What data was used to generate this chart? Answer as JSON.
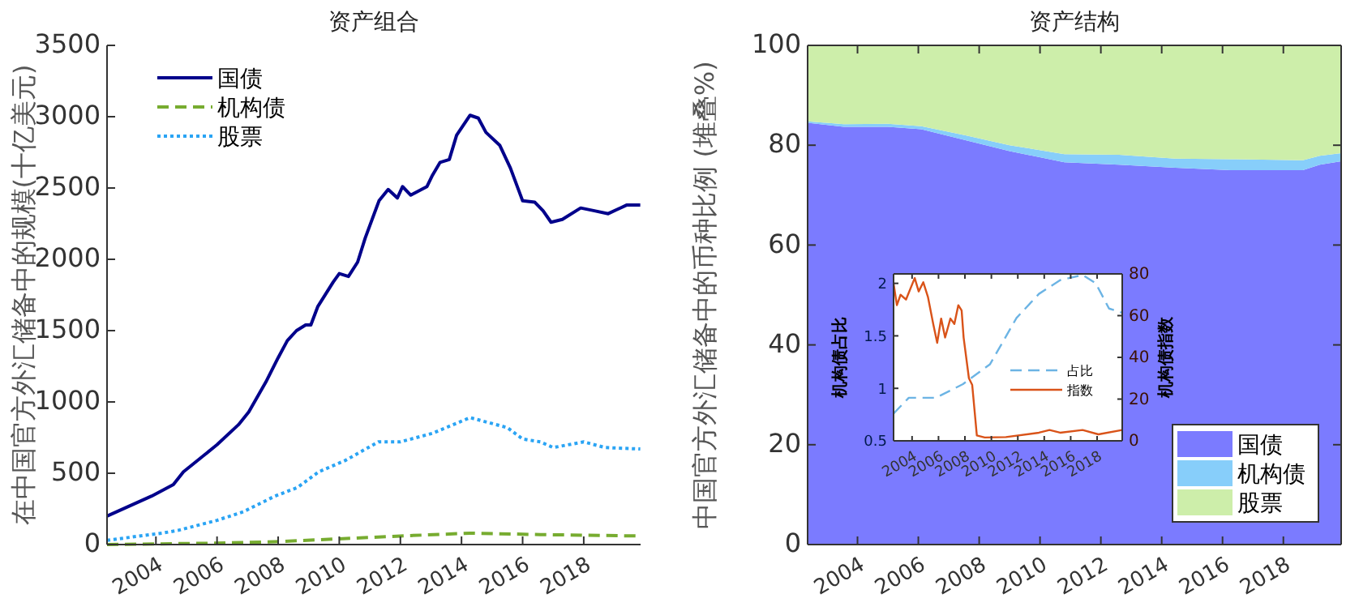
{
  "chart_data": [
    {
      "type": "line",
      "title": "资产组合",
      "ylabel": "在中国官方外汇储备中的规模(十亿美元)",
      "xlim": [
        2002.4,
        2019.86
      ],
      "xticks": [
        2004,
        2006,
        2008,
        2010,
        2012,
        2014,
        2016,
        2018
      ],
      "ylim": [
        0,
        3500
      ],
      "yticks": [
        0,
        500,
        1000,
        1500,
        2000,
        2500,
        3000,
        3500
      ],
      "legend": "top left",
      "grid": false,
      "series": [
        {
          "name": "国债",
          "color": "#00008b",
          "line_style": "solid",
          "x": [
            2002.4,
            2003.86,
            2004.57,
            2004.9,
            2006,
            2006.7,
            2007.04,
            2007.6,
            2008.0,
            2008.3,
            2008.6,
            2008.9,
            2009.07,
            2009.3,
            2009.8,
            2010.0,
            2010.3,
            2010.6,
            2010.85,
            2011.3,
            2011.6,
            2011.9,
            2012.07,
            2012.34,
            2012.87,
            2013.05,
            2013.3,
            2013.6,
            2013.84,
            2014.28,
            2014.55,
            2014.8,
            2015.25,
            2015.6,
            2016.0,
            2016.4,
            2016.67,
            2016.93,
            2017.3,
            2017.9,
            2018.35,
            2018.8,
            2019.4,
            2019.85
          ],
          "values": [
            200,
            340,
            420,
            510,
            700,
            840,
            930,
            1140,
            1310,
            1430,
            1500,
            1540,
            1540,
            1670,
            1840,
            1900,
            1880,
            1980,
            2150,
            2410,
            2490,
            2430,
            2510,
            2450,
            2510,
            2590,
            2680,
            2700,
            2870,
            3010,
            2990,
            2890,
            2800,
            2640,
            2410,
            2400,
            2340,
            2260,
            2280,
            2360,
            2340,
            2320,
            2380,
            2380
          ]
        },
        {
          "name": "机构债",
          "color": "#77ac30",
          "line_style": "dashed",
          "x": [
            2002.4,
            2006,
            2007.9,
            2010,
            2012,
            2014.28,
            2016.58,
            2019.85
          ],
          "values": [
            0,
            10,
            20,
            40,
            60,
            80,
            70,
            60
          ]
        },
        {
          "name": "股票",
          "color": "#2aa4f4",
          "line_style": "dotted",
          "x": [
            2002.4,
            2004.2,
            2004.74,
            2006,
            2006.86,
            2007.9,
            2008.63,
            2009.33,
            2010.2,
            2011.28,
            2012,
            2013.05,
            2014.28,
            2015.5,
            2016,
            2016.58,
            2017.0,
            2018,
            2018.7,
            2019.85
          ],
          "values": [
            30,
            80,
            100,
            170,
            230,
            340,
            400,
            510,
            590,
            720,
            720,
            780,
            890,
            820,
            740,
            720,
            680,
            720,
            680,
            670
          ]
        }
      ]
    },
    {
      "type": "area",
      "stacked": true,
      "title": "资产结构",
      "ylabel": "中国官方外汇储备中的币种比例 (堆叠%)",
      "xlim": [
        2002.36,
        2019.9
      ],
      "xticks": [
        2004,
        2006,
        2008,
        2010,
        2012,
        2014,
        2016,
        2018
      ],
      "ylim": [
        0,
        100
      ],
      "yticks": [
        0,
        20,
        40,
        60,
        80,
        100
      ],
      "legend": "bottom right",
      "grid": false,
      "x": [
        2002.36,
        2003.55,
        2005,
        2006.1,
        2007.55,
        2009,
        2010.8,
        2012.6,
        2014.45,
        2016.27,
        2018.64,
        2019.2,
        2019.9
      ],
      "series": [
        {
          "name": "国债",
          "color": "#7b7bff",
          "values": [
            84.5,
            83.7,
            83.7,
            83.2,
            81,
            78.8,
            76.6,
            76.1,
            75.5,
            75,
            75,
            76.1,
            76.8
          ]
        },
        {
          "name": "机构债",
          "color": "#87cefa",
          "values": [
            0.3,
            0.5,
            0.6,
            0.6,
            1,
            1.2,
            1.6,
            2,
            1.8,
            2.2,
            2,
            1.8,
            1.6
          ]
        },
        {
          "name": "股票",
          "color": "#cdeeaa",
          "values": [
            15.2,
            15.8,
            15.7,
            16.2,
            18,
            20,
            21.8,
            21.9,
            22.7,
            22.8,
            23,
            22.1,
            21.6
          ]
        }
      ]
    },
    {
      "type": "line",
      "ylabel": "机构债占比",
      "y2label": "机构债指数",
      "xlim": [
        2002.6,
        2019.9
      ],
      "xticks": [
        2004,
        2006,
        2008,
        2010,
        2012,
        2014,
        2016,
        2018
      ],
      "ylim": [
        0.5,
        2.09
      ],
      "yticks": [
        0.5,
        1,
        1.5,
        2
      ],
      "y2lim": [
        0,
        80
      ],
      "y2ticks": [
        0,
        20,
        40,
        60,
        80
      ],
      "legend": "right",
      "grid": false,
      "series": [
        {
          "name": "占比",
          "color": "#6cb4e4",
          "line_style": "dashed",
          "axis": "y",
          "x": [
            2002.6,
            2003.75,
            2005.8,
            2007.85,
            2009.9,
            2011.9,
            2013.6,
            2015.2,
            2016.9,
            2017.9,
            2018.9,
            2019.9
          ],
          "values": [
            0.76,
            0.91,
            0.91,
            1.04,
            1.23,
            1.67,
            1.9,
            2.03,
            2.08,
            2.0,
            1.76,
            1.72
          ]
        },
        {
          "name": "指数",
          "color": "#d95319",
          "line_style": "solid",
          "axis": "y2",
          "x": [
            2002.6,
            2002.85,
            2003.13,
            2003.54,
            2004.2,
            2004.5,
            2004.85,
            2005.2,
            2005.6,
            2005.9,
            2006.2,
            2006.5,
            2006.9,
            2007.2,
            2007.5,
            2007.75,
            2007.9,
            2008.3,
            2008.55,
            2008.9,
            2009.5,
            2011.1,
            2013.6,
            2014.4,
            2015.2,
            2016.9,
            2018.1,
            2019.9
          ],
          "values": [
            75.5,
            65,
            70,
            67.7,
            78,
            71.6,
            76,
            69,
            56,
            47,
            58.6,
            49.5,
            58.6,
            56,
            65,
            62.5,
            49.5,
            30,
            26.8,
            2.6,
            1.6,
            1.8,
            3.9,
            5.2,
            3.9,
            5.2,
            3.1,
            5.2
          ]
        }
      ]
    }
  ]
}
